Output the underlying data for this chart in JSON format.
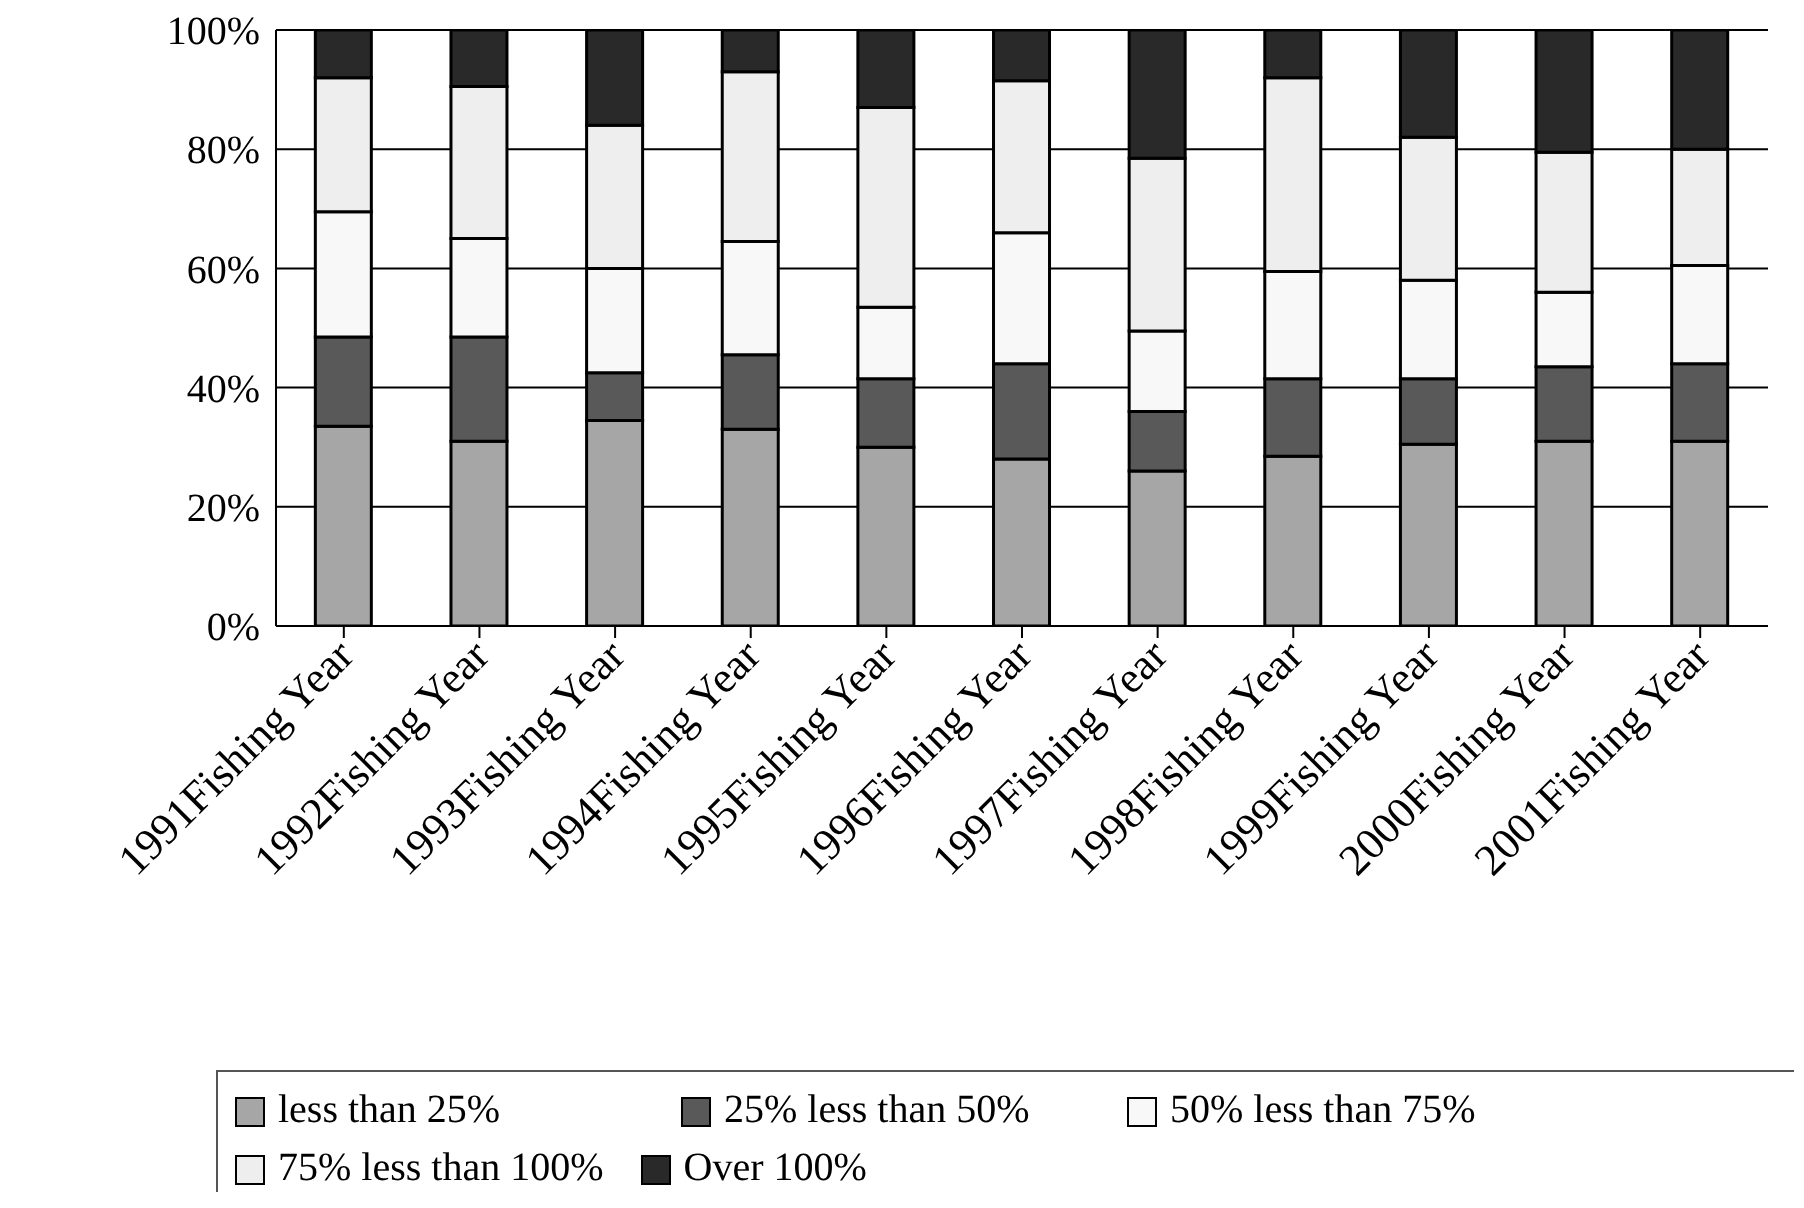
{
  "chart_data": {
    "type": "bar",
    "stacked": true,
    "categories": [
      "1991Fishing Year",
      "1992Fishing Year",
      "1993Fishing Year",
      "1994Fishing Year",
      "1995Fishing Year",
      "1996Fishing Year",
      "1997Fishing Year",
      "1998Fishing Year",
      "1999Fishing Year",
      "2000Fishing Year",
      "2001Fishing Year"
    ],
    "series": [
      {
        "name": "less than 25%",
        "color": "#a6a6a6",
        "values": [
          33.5,
          31,
          34.5,
          33,
          30,
          28,
          26,
          28.5,
          30.5,
          31,
          31
        ]
      },
      {
        "name": "25% less than 50%",
        "color": "#595959",
        "values": [
          15,
          17.5,
          8,
          12.5,
          11.5,
          16,
          10,
          13,
          11,
          12.5,
          13
        ]
      },
      {
        "name": "50% less than 75%",
        "color": "#f8f8f8",
        "values": [
          21,
          16.5,
          17.5,
          19,
          12,
          22,
          13.5,
          18,
          16.5,
          12.5,
          16.5
        ]
      },
      {
        "name": "75% less than 100%",
        "color": "#eeeeee",
        "values": [
          22.5,
          25.5,
          24,
          28.5,
          33.5,
          25.5,
          29,
          32.5,
          24,
          23.5,
          19.5
        ]
      },
      {
        "name": "Over 100%",
        "color": "#292929",
        "values": [
          8,
          9.5,
          16,
          7,
          13,
          8.5,
          21.5,
          8,
          18,
          20.5,
          20
        ]
      }
    ],
    "ylim": [
      0,
      100
    ],
    "yticks": [
      {
        "value": 0,
        "label": "0%"
      },
      {
        "value": 20,
        "label": "20%"
      },
      {
        "value": 40,
        "label": "40%"
      },
      {
        "value": 60,
        "label": "60%"
      },
      {
        "value": 80,
        "label": "80%"
      },
      {
        "value": 100,
        "label": "100%"
      }
    ],
    "grid": "y",
    "legend": "bottom"
  }
}
